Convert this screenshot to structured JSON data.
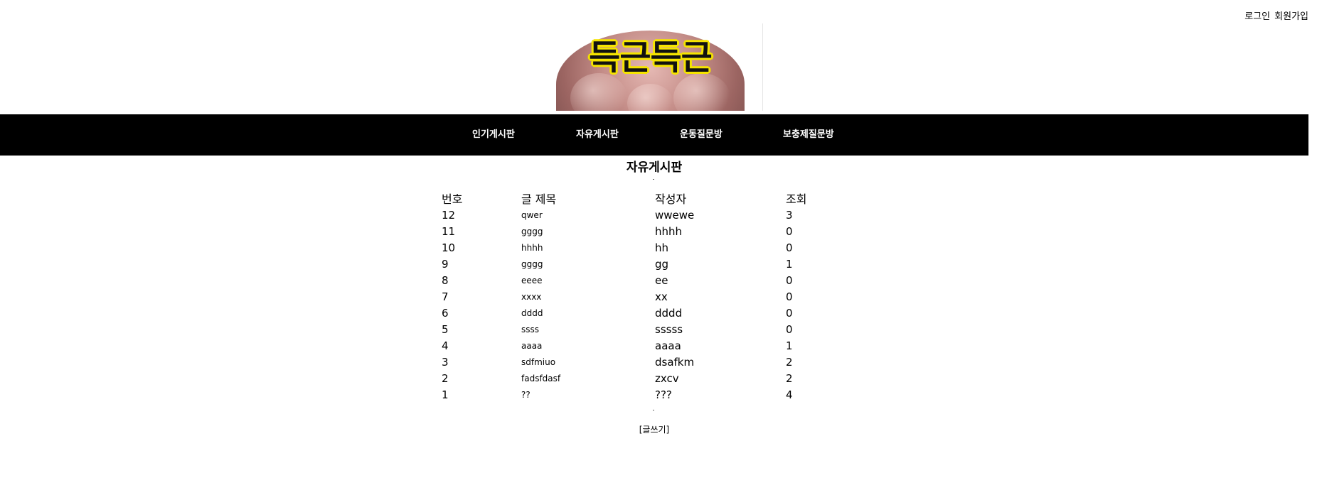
{
  "auth": {
    "login": "로그인",
    "signup": "회원가입"
  },
  "logo": {
    "text": "득근득근"
  },
  "nav": {
    "items": [
      {
        "label": "인기게시판"
      },
      {
        "label": "자유게시판"
      },
      {
        "label": "운동질문방"
      },
      {
        "label": "보충제질문방"
      }
    ]
  },
  "board": {
    "title": "자유게시판",
    "headers": {
      "no": "번호",
      "subject": "글 제목",
      "writer": "작성자",
      "views": "조회"
    },
    "rows": [
      {
        "no": "12",
        "subject": "qwer",
        "writer": "wwewe",
        "views": "3"
      },
      {
        "no": "11",
        "subject": "gggg",
        "writer": "hhhh",
        "views": "0"
      },
      {
        "no": "10",
        "subject": "hhhh",
        "writer": "hh",
        "views": "0"
      },
      {
        "no": "9",
        "subject": "gggg",
        "writer": "gg",
        "views": "1"
      },
      {
        "no": "8",
        "subject": "eeee",
        "writer": "ee",
        "views": "0"
      },
      {
        "no": "7",
        "subject": "xxxx",
        "writer": "xx",
        "views": "0"
      },
      {
        "no": "6",
        "subject": "dddd",
        "writer": "dddd",
        "views": "0"
      },
      {
        "no": "5",
        "subject": "ssss",
        "writer": "sssss",
        "views": "0"
      },
      {
        "no": "4",
        "subject": "aaaa",
        "writer": "aaaa",
        "views": "1"
      },
      {
        "no": "3",
        "subject": "sdfmiuo",
        "writer": "dsafkm",
        "views": "2"
      },
      {
        "no": "2",
        "subject": "fadsfdasf",
        "writer": "zxcv",
        "views": "2"
      },
      {
        "no": "1",
        "subject": "??",
        "writer": "???",
        "views": "4"
      }
    ],
    "write_label": "[글쓰기]"
  }
}
